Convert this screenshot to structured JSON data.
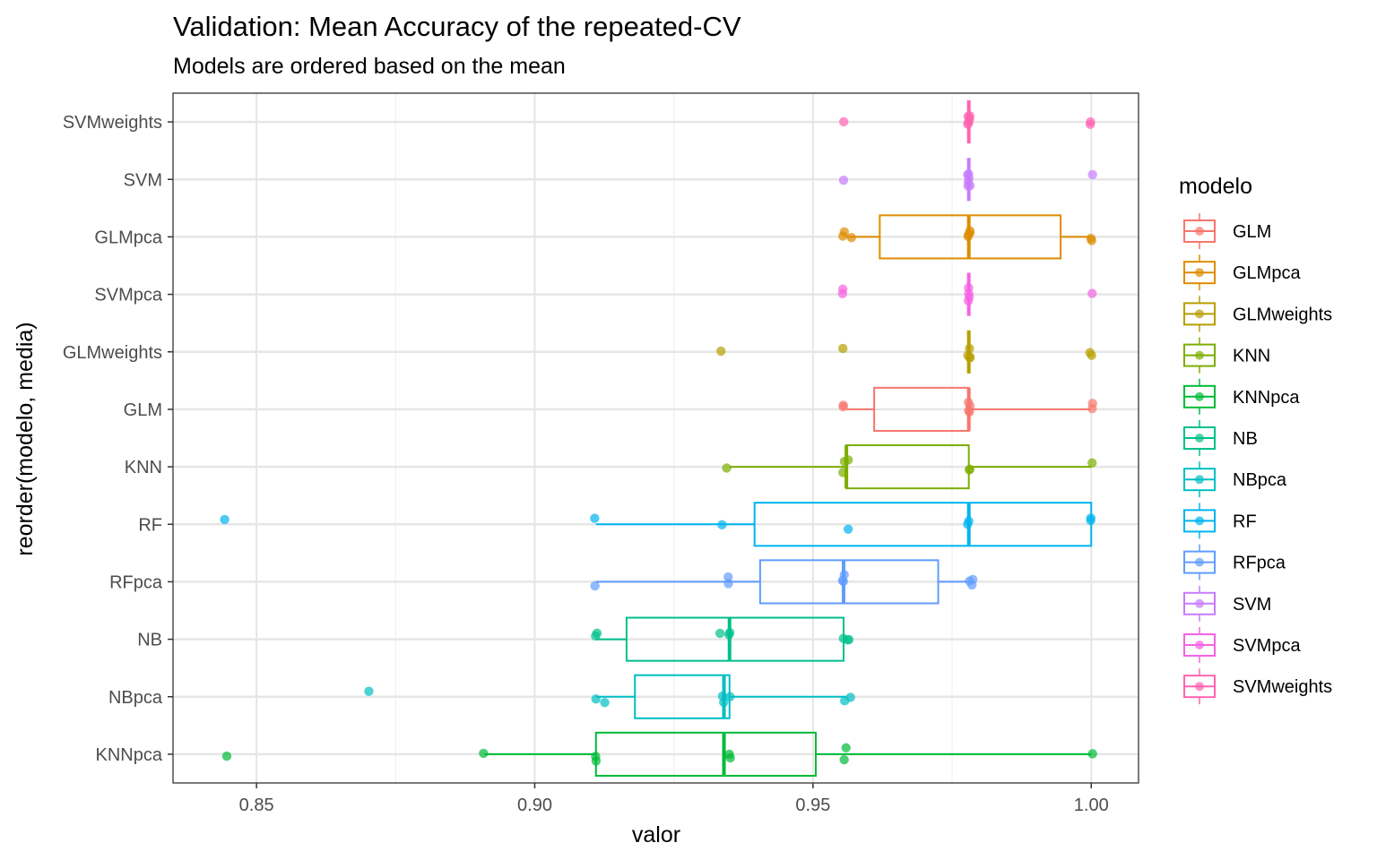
{
  "chart_data": {
    "type": "box",
    "orientation": "horizontal",
    "title": "Validation: Mean Accuracy of the repeated-CV",
    "subtitle": "Models are ordered based on the mean",
    "xlabel": "valor",
    "ylabel": "reorder(modelo, media)",
    "xlim": [
      0.835,
      1.0085
    ],
    "xticks": [
      0.85,
      0.9,
      0.95,
      1.0
    ],
    "xtick_labels": [
      "0.85",
      "0.90",
      "0.95",
      "1.00"
    ],
    "grid": true,
    "legend": {
      "title": "modelo",
      "position": "right",
      "entries": [
        "GLM",
        "GLMpca",
        "GLMweights",
        "KNN",
        "KNNpca",
        "NB",
        "NBpca",
        "RF",
        "RFpca",
        "SVM",
        "SVMpca",
        "SVMweights"
      ]
    },
    "colors": {
      "GLM": "#F8766D",
      "GLMpca": "#DE8C00",
      "GLMweights": "#B79F00",
      "KNN": "#7CAE00",
      "KNNpca": "#00BA38",
      "NB": "#00C08B",
      "NBpca": "#00BFC4",
      "RF": "#00B4F0",
      "RFpca": "#619CFF",
      "SVM": "#C77CFF",
      "SVMpca": "#F564E3",
      "SVMweights": "#FF64B0"
    },
    "categories_top_to_bottom": [
      "SVMweights",
      "SVM",
      "GLMpca",
      "SVMpca",
      "GLMweights",
      "GLM",
      "KNN",
      "RF",
      "RFpca",
      "NB",
      "NBpca",
      "KNNpca"
    ],
    "boxes": {
      "SVMweights": {
        "lower": 0.978,
        "q1": 0.978,
        "median": 0.978,
        "q3": 0.978,
        "upper": 0.978
      },
      "SVM": {
        "lower": 0.978,
        "q1": 0.978,
        "median": 0.978,
        "q3": 0.978,
        "upper": 0.978
      },
      "GLMpca": {
        "lower": 0.956,
        "q1": 0.962,
        "median": 0.978,
        "q3": 0.9945,
        "upper": 1.0
      },
      "SVMpca": {
        "lower": 0.978,
        "q1": 0.978,
        "median": 0.978,
        "q3": 0.978,
        "upper": 0.978
      },
      "GLMweights": {
        "lower": 0.978,
        "q1": 0.978,
        "median": 0.978,
        "q3": 0.978,
        "upper": 0.978
      },
      "GLM": {
        "lower": 0.956,
        "q1": 0.961,
        "median": 0.978,
        "q3": 0.978,
        "upper": 1.0
      },
      "KNN": {
        "lower": 0.935,
        "q1": 0.956,
        "median": 0.956,
        "q3": 0.978,
        "upper": 1.0
      },
      "RF": {
        "lower": 0.911,
        "q1": 0.9395,
        "median": 0.978,
        "q3": 1.0,
        "upper": 1.0
      },
      "RFpca": {
        "lower": 0.911,
        "q1": 0.9405,
        "median": 0.9555,
        "q3": 0.9725,
        "upper": 0.978
      },
      "NB": {
        "lower": 0.911,
        "q1": 0.9165,
        "median": 0.935,
        "q3": 0.9555,
        "upper": 0.9555
      },
      "NBpca": {
        "lower": 0.911,
        "q1": 0.918,
        "median": 0.934,
        "q3": 0.935,
        "upper": 0.956
      },
      "KNNpca": {
        "lower": 0.891,
        "q1": 0.911,
        "median": 0.934,
        "q3": 0.9505,
        "upper": 1.0
      }
    },
    "points": {
      "SVMweights": [
        0.9555,
        0.978,
        0.978,
        0.978,
        0.978,
        0.978,
        0.978,
        1.0,
        1.0
      ],
      "SVM": [
        0.9555,
        0.978,
        0.978,
        0.978,
        0.978,
        0.978,
        0.978,
        1.0
      ],
      "GLMpca": [
        0.9555,
        0.957,
        0.9555,
        0.978,
        0.978,
        0.978,
        0.978,
        1.0,
        1.0
      ],
      "SVMpca": [
        0.9555,
        0.9555,
        0.978,
        0.978,
        0.978,
        0.978,
        1.0
      ],
      "GLMweights": [
        0.9335,
        0.9555,
        0.978,
        0.978,
        0.978,
        0.978,
        1.0,
        1.0
      ],
      "GLM": [
        0.9555,
        0.9555,
        0.978,
        0.978,
        0.978,
        0.978,
        1.0,
        1.0
      ],
      "KNN": [
        0.9345,
        0.9555,
        0.9555,
        0.9565,
        0.978,
        0.978,
        1.0
      ],
      "RF": [
        0.8445,
        0.911,
        0.9335,
        0.9565,
        0.978,
        0.978,
        1.0,
        1.0
      ],
      "RFpca": [
        0.911,
        0.935,
        0.935,
        0.9555,
        0.9555,
        0.9555,
        0.978,
        0.9785,
        0.9785
      ],
      "NB": [
        0.911,
        0.911,
        0.9335,
        0.935,
        0.935,
        0.9555,
        0.956,
        0.9565
      ],
      "NBpca": [
        0.87,
        0.911,
        0.9125,
        0.9335,
        0.934,
        0.935,
        0.9555,
        0.9565
      ],
      "KNNpca": [
        0.8445,
        0.891,
        0.911,
        0.911,
        0.935,
        0.935,
        0.9555,
        0.956,
        1.0
      ]
    }
  }
}
